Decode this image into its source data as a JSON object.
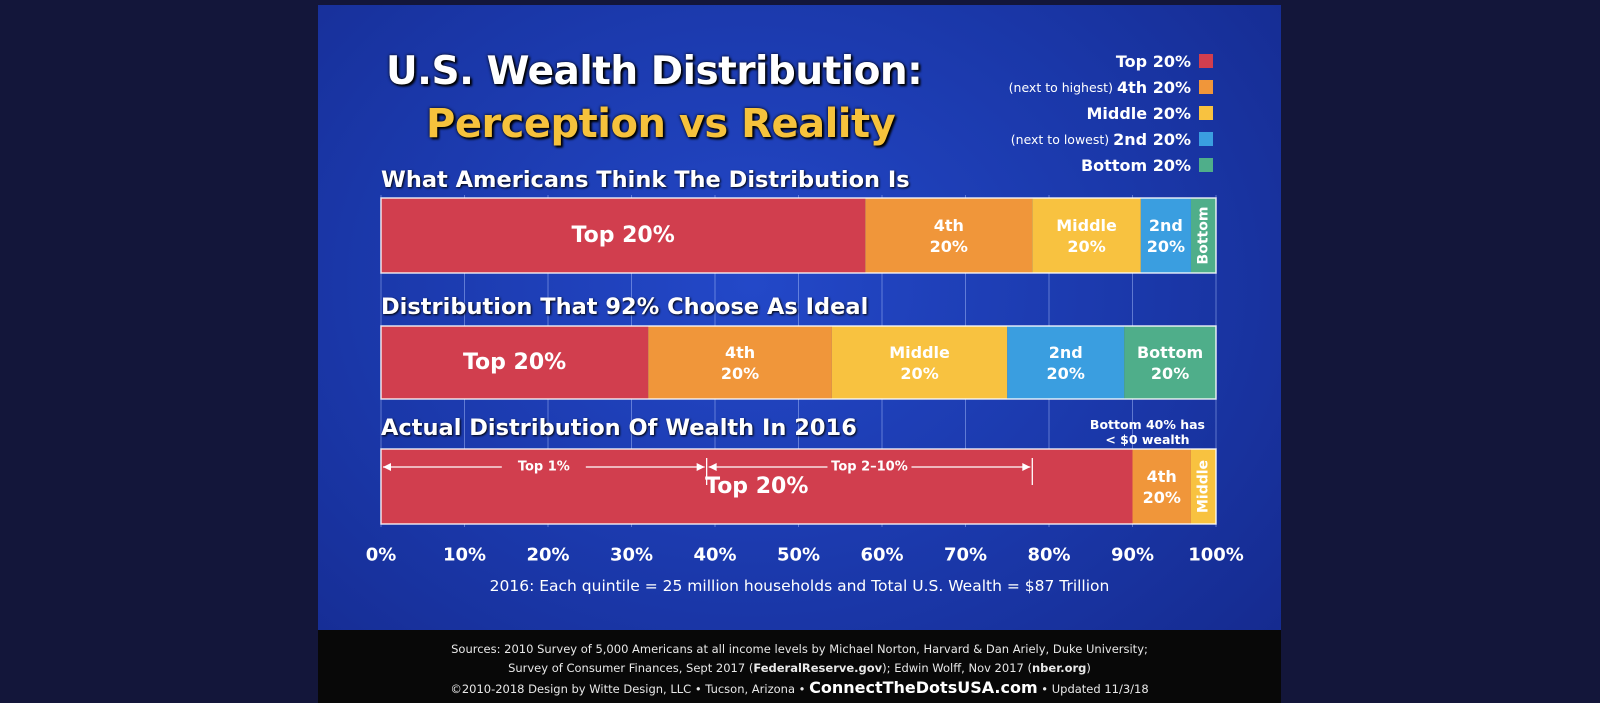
{
  "title_line1": "U.S. Wealth Distribution:",
  "title_line2": "Perception vs Reality",
  "legend": [
    {
      "prefix": "",
      "label": "Top 20%",
      "color": "#d13e4e"
    },
    {
      "prefix": "(next to highest)",
      "label": "4th 20%",
      "color": "#f0963a"
    },
    {
      "prefix": "",
      "label": "Middle 20%",
      "color": "#f8c240"
    },
    {
      "prefix": "(next to lowest)",
      "label": "2nd 20%",
      "color": "#3a9ee0"
    },
    {
      "prefix": "",
      "label": "Bottom 20%",
      "color": "#4fae8a"
    }
  ],
  "chart_data": {
    "type": "bar",
    "orientation": "horizontal-stacked",
    "x": {
      "ticks": [
        0,
        10,
        20,
        30,
        40,
        50,
        60,
        70,
        80,
        90,
        100
      ],
      "tick_suffix": "%",
      "range": [
        0,
        100
      ]
    },
    "grid": true,
    "series": [
      {
        "name": "What Americans Think The Distribution Is",
        "segments": [
          {
            "label": "Top 20%",
            "value": 58,
            "color": "#d13e4e",
            "orient": "h"
          },
          {
            "label": "4th\n20%",
            "value": 20,
            "color": "#f0963a",
            "orient": "h"
          },
          {
            "label": "Middle\n20%",
            "value": 13,
            "color": "#f8c240",
            "orient": "h"
          },
          {
            "label": "2nd\n20%",
            "value": 6,
            "color": "#3a9ee0",
            "orient": "h"
          },
          {
            "label": "Bottom",
            "value": 3,
            "color": "#4fae8a",
            "orient": "v"
          }
        ]
      },
      {
        "name": "Distribution That 92% Choose As Ideal",
        "segments": [
          {
            "label": "Top 20%",
            "value": 32,
            "color": "#d13e4e",
            "orient": "h"
          },
          {
            "label": "4th\n20%",
            "value": 22,
            "color": "#f0963a",
            "orient": "h"
          },
          {
            "label": "Middle\n20%",
            "value": 21,
            "color": "#f8c240",
            "orient": "h"
          },
          {
            "label": "2nd\n20%",
            "value": 14,
            "color": "#3a9ee0",
            "orient": "h"
          },
          {
            "label": "Bottom\n20%",
            "value": 11,
            "color": "#4fae8a",
            "orient": "h"
          }
        ]
      },
      {
        "name": "Actual Distribution Of Wealth In 2016",
        "segments": [
          {
            "label": "Top 20%",
            "value": 90,
            "color": "#d13e4e",
            "orient": "h"
          },
          {
            "label": "4th\n20%",
            "value": 7,
            "color": "#f0963a",
            "orient": "h"
          },
          {
            "label": "Middle",
            "value": 3,
            "color": "#f8c240",
            "orient": "v"
          }
        ],
        "brackets": [
          {
            "label": "Top 1%",
            "from": 0,
            "to": 39
          },
          {
            "label": "Top 2–10%",
            "from": 39,
            "to": 78
          }
        ]
      }
    ],
    "annotation": "Bottom 40% has\n< $0 wealth",
    "subtitle": "2016: Each quintile = 25 million households and Total U.S. Wealth = $87 Trillion"
  },
  "footer": {
    "line1": "Sources: 2010 Survey of 5,000 Americans at all income levels by Michael Norton, Harvard & Dan Ariely, Duke University;",
    "line2a": "Survey of Consumer Finances, Sept 2017 (",
    "line2b": "FederalReserve.gov",
    "line2c": "); Edwin Wolff, Nov 2017 (",
    "line2d": "nber.org",
    "line2e": ")",
    "line3a": "©2010-2018 Design by Witte Design, LLC • Tucson, Arizona •",
    "line3b": "ConnectTheDotsUSA.com",
    "line3c": "• Updated 11/3/18"
  }
}
